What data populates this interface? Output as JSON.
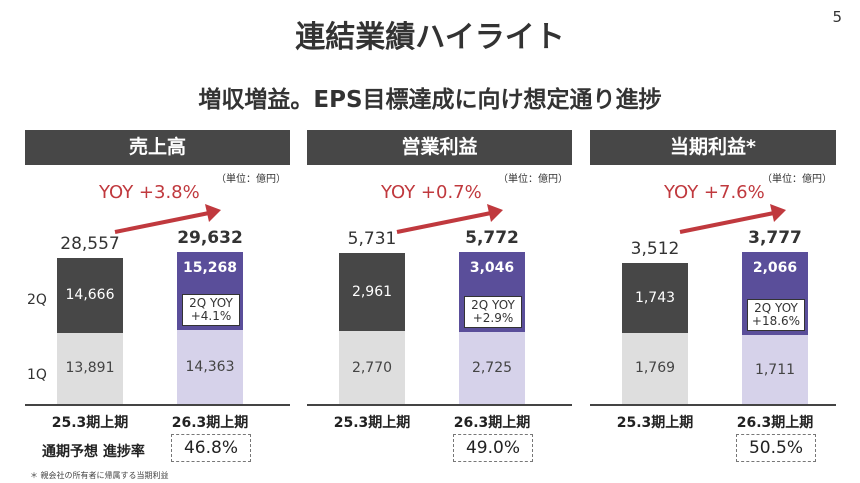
{
  "page_number": "5",
  "title": "連結業績ハイライト",
  "subtitle": "増収増益。EPS目標達成に向け想定通り進捗",
  "unit": "（単位：億円）",
  "progress_label": "通期予想 進捗率",
  "footnote": "＊ 親会社の所有者に帰属する当期利益",
  "colors": {
    "prev_2q": "#474747",
    "prev_1q": "#dedede",
    "curr_2q": "#5a4e9a",
    "curr_1q": "#d6d2ea",
    "yoy": "#c0393e",
    "header": "#474747"
  },
  "chart_data": [
    {
      "type": "bar",
      "stacked": true,
      "title": "売上高",
      "categories": [
        "25.3期上期",
        "26.3期上期"
      ],
      "series": [
        {
          "name": "1Q",
          "values": [
            13891,
            14363
          ]
        },
        {
          "name": "2Q",
          "values": [
            14666,
            15268
          ]
        }
      ],
      "totals": [
        "28,557",
        "29,632"
      ],
      "seg_labels": [
        [
          "13,891",
          "14,666"
        ],
        [
          "14,363",
          "15,268"
        ]
      ],
      "yoy": "YOY +3.8%",
      "q2_yoy": [
        "2Q YOY",
        "+4.1%"
      ],
      "progress": "46.8%"
    },
    {
      "type": "bar",
      "stacked": true,
      "title": "営業利益",
      "categories": [
        "25.3期上期",
        "26.3期上期"
      ],
      "series": [
        {
          "name": "1Q",
          "values": [
            2770,
            2725
          ]
        },
        {
          "name": "2Q",
          "values": [
            2961,
            3046
          ]
        }
      ],
      "totals": [
        "5,731",
        "5,772"
      ],
      "seg_labels": [
        [
          "2,770",
          "2,961"
        ],
        [
          "2,725",
          "3,046"
        ]
      ],
      "yoy": "YOY +0.7%",
      "q2_yoy": [
        "2Q YOY",
        "+2.9%"
      ],
      "progress": "49.0%"
    },
    {
      "type": "bar",
      "stacked": true,
      "title": "当期利益*",
      "categories": [
        "25.3期上期",
        "26.3期上期"
      ],
      "series": [
        {
          "name": "1Q",
          "values": [
            1769,
            1711
          ]
        },
        {
          "name": "2Q",
          "values": [
            1743,
            2066
          ]
        }
      ],
      "totals": [
        "3,512",
        "3,777"
      ],
      "seg_labels": [
        [
          "1,769",
          "1,743"
        ],
        [
          "1,711",
          "2,066"
        ]
      ],
      "yoy": "YOY +7.6%",
      "q2_yoy": [
        "2Q YOY",
        "+18.6%"
      ],
      "progress": "50.5%"
    }
  ]
}
